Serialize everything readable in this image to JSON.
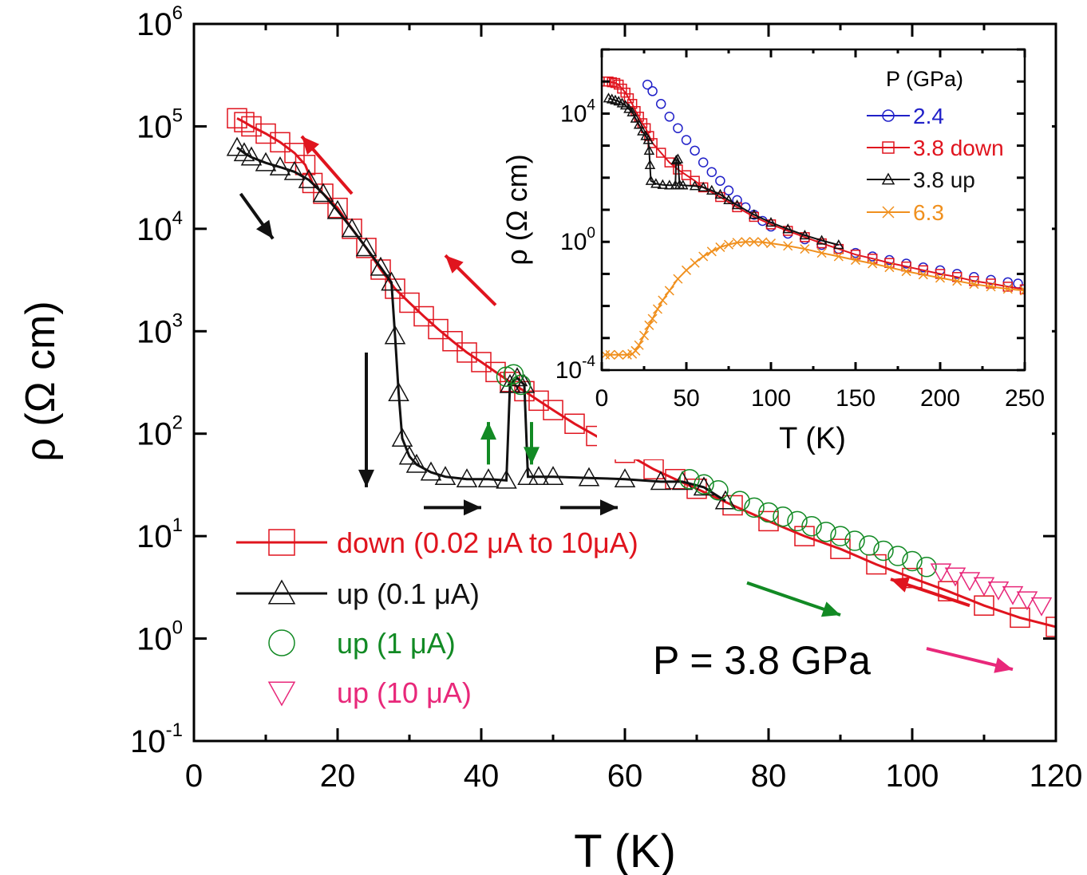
{
  "chart_data": [
    {
      "type": "scatter",
      "xlabel": "T (K)",
      "ylabel": "ρ (Ω cm)",
      "xlim": [
        0,
        120
      ],
      "ylim": [
        0.1,
        1000000
      ],
      "yscale": "log",
      "x_ticks": [
        "0",
        "20",
        "40",
        "60",
        "80",
        "100",
        "120"
      ],
      "y_ticks": [
        {
          "base": "10",
          "exp": "-1"
        },
        {
          "base": "10",
          "exp": "0"
        },
        {
          "base": "10",
          "exp": "1"
        },
        {
          "base": "10",
          "exp": "2"
        },
        {
          "base": "10",
          "exp": "3"
        },
        {
          "base": "10",
          "exp": "4"
        },
        {
          "base": "10",
          "exp": "5"
        },
        {
          "base": "10",
          "exp": "6"
        }
      ],
      "legend_position": "bottom-left",
      "annotation": "P = 3.8 GPa",
      "series": [
        {
          "name": "down (0.02 μA to 10μA)",
          "color": "#e0141e",
          "marker": "square",
          "x": [
            6,
            7,
            8,
            10,
            12,
            14,
            15.5,
            16.5,
            18,
            20,
            22,
            24,
            26,
            28,
            30,
            32,
            34,
            36,
            38,
            40,
            42,
            44,
            46,
            48,
            50,
            53,
            56,
            60,
            64,
            67,
            70,
            75,
            80,
            85,
            90,
            95,
            100,
            105,
            110,
            115,
            120
          ],
          "y": [
            120000,
            110000,
            100000,
            85000,
            70000,
            55000,
            42000,
            28000,
            22000,
            16000,
            10000,
            6500,
            4000,
            2600,
            1900,
            1400,
            1050,
            800,
            620,
            500,
            400,
            320,
            260,
            210,
            170,
            125,
            95,
            65,
            45,
            36,
            29,
            20,
            14,
            10,
            7.5,
            5.3,
            3.9,
            2.9,
            2.1,
            1.6,
            1.3
          ]
        },
        {
          "name": "up (0.1 μA)",
          "color": "#111111",
          "marker": "triangle",
          "x": [
            6,
            7,
            8,
            10,
            12,
            14,
            16,
            18,
            20,
            22,
            24,
            26,
            27.5,
            28,
            28.5,
            29,
            30,
            31,
            33,
            35,
            38,
            41,
            43.5,
            44,
            45,
            46,
            46.5,
            48,
            50,
            55,
            60,
            65,
            68,
            71,
            74
          ],
          "y": [
            62000,
            55000,
            50000,
            44000,
            40000,
            36000,
            30000,
            22000,
            15000,
            10000,
            6500,
            4200,
            3000,
            900,
            250,
            90,
            60,
            50,
            42,
            38,
            36,
            36,
            35,
            300,
            350,
            300,
            38,
            38,
            38,
            37,
            36,
            34,
            34,
            30,
            22
          ]
        },
        {
          "name": "up (1 μA)",
          "color": "#128a24",
          "marker": "circle",
          "x": [
            43.5,
            44.5,
            45.5,
            69,
            71,
            73,
            76,
            78,
            80,
            82,
            84,
            86,
            88,
            90,
            92,
            94,
            96,
            98,
            100,
            102
          ],
          "y": [
            360,
            380,
            300,
            36,
            32,
            28,
            22,
            19,
            17,
            15.5,
            14,
            12.5,
            11,
            10,
            9,
            8.1,
            7.2,
            6.4,
            5.7,
            5
          ]
        },
        {
          "name": "up (10 μA)",
          "color": "#e8287a",
          "marker": "triangle-down",
          "x": [
            104,
            106,
            108,
            110,
            112,
            114,
            116,
            118
          ],
          "y": [
            4.5,
            4.1,
            3.7,
            3.3,
            3.0,
            2.7,
            2.4,
            2.1
          ]
        }
      ]
    },
    {
      "type": "scatter",
      "xlabel": "T (K)",
      "ylabel": "ρ (Ω cm)",
      "xlim": [
        0,
        250
      ],
      "ylim": [
        0.0001,
        1000000
      ],
      "yscale": "log",
      "x_ticks": [
        "0",
        "50",
        "100",
        "150",
        "200",
        "250"
      ],
      "y_ticks": [
        {
          "base": "10",
          "exp": "-4"
        },
        {
          "base": "10",
          "exp": "0"
        },
        {
          "base": "10",
          "exp": "4"
        }
      ],
      "legend_title": "P (GPa)",
      "legend_position": "top-right",
      "series": [
        {
          "name": "2.4",
          "color": "#2020c8",
          "marker": "circle",
          "x": [
            27,
            30,
            35,
            40,
            45,
            50,
            55,
            60,
            65,
            70,
            75,
            80,
            85,
            90,
            95,
            100,
            110,
            120,
            130,
            140,
            150,
            160,
            170,
            180,
            190,
            200,
            210,
            220,
            230,
            240,
            246
          ],
          "y": [
            80000,
            50000,
            20000,
            8000,
            3500,
            1500,
            700,
            300,
            150,
            80,
            40,
            20,
            12,
            7,
            4.5,
            3,
            1.8,
            1.2,
            0.8,
            0.6,
            0.45,
            0.35,
            0.27,
            0.21,
            0.16,
            0.13,
            0.1,
            0.08,
            0.065,
            0.055,
            0.05
          ]
        },
        {
          "name": "3.8 down",
          "color": "#e0141e",
          "marker": "square",
          "x": [
            2,
            4,
            6,
            8,
            10,
            12,
            14,
            16,
            18,
            20,
            22,
            24,
            26,
            28,
            30,
            35,
            40,
            45,
            50,
            55,
            60,
            70,
            80,
            90,
            100,
            110,
            120,
            130,
            140,
            150,
            160,
            170,
            180,
            190,
            200,
            210,
            220,
            230,
            240,
            250
          ],
          "y": [
            100000,
            100000,
            95000,
            90000,
            80000,
            60000,
            45000,
            30000,
            20000,
            12000,
            8000,
            5000,
            3500,
            2000,
            1200,
            600,
            300,
            180,
            120,
            80,
            50,
            25,
            12,
            6,
            3.5,
            2.2,
            1.4,
            0.9,
            0.6,
            0.4,
            0.3,
            0.22,
            0.17,
            0.13,
            0.1,
            0.08,
            0.06,
            0.05,
            0.04,
            0.033
          ]
        },
        {
          "name": "3.8 up",
          "color": "#111111",
          "marker": "triangle",
          "x": [
            4,
            6,
            8,
            10,
            12,
            14,
            16,
            18,
            20,
            22,
            24,
            26,
            27.5,
            28,
            28.5,
            29,
            32,
            36,
            40,
            43.5,
            44,
            45,
            46,
            48,
            55,
            60,
            65,
            70,
            75,
            80,
            90,
            100,
            110,
            120,
            130,
            140
          ],
          "y": [
            30000,
            28000,
            26000,
            24000,
            21000,
            18000,
            14000,
            11000,
            7000,
            4500,
            2800,
            2000,
            1500,
            700,
            250,
            80,
            65,
            60,
            58,
            58,
            350,
            380,
            60,
            58,
            55,
            50,
            40,
            30,
            20,
            14,
            7,
            4,
            2.5,
            1.6,
            1.1,
            0.8
          ]
        },
        {
          "name": "6.3",
          "color": "#f0901e",
          "marker": "x",
          "x": [
            2,
            5,
            10,
            15,
            18,
            20,
            22,
            25,
            28,
            30,
            33,
            36,
            40,
            45,
            50,
            55,
            60,
            65,
            70,
            75,
            80,
            85,
            90,
            95,
            100,
            110,
            120,
            130,
            140,
            150,
            160,
            170,
            180,
            190,
            200,
            210,
            220,
            230,
            240,
            250
          ],
          "y": [
            0.0003,
            0.0003,
            0.0003,
            0.0003,
            0.00032,
            0.0004,
            0.0006,
            0.0012,
            0.0025,
            0.004,
            0.008,
            0.015,
            0.03,
            0.07,
            0.13,
            0.22,
            0.35,
            0.5,
            0.68,
            0.82,
            0.95,
            1.0,
            1.0,
            0.98,
            0.9,
            0.75,
            0.6,
            0.45,
            0.35,
            0.27,
            0.21,
            0.16,
            0.12,
            0.095,
            0.075,
            0.06,
            0.048,
            0.04,
            0.034,
            0.03
          ]
        }
      ]
    }
  ]
}
